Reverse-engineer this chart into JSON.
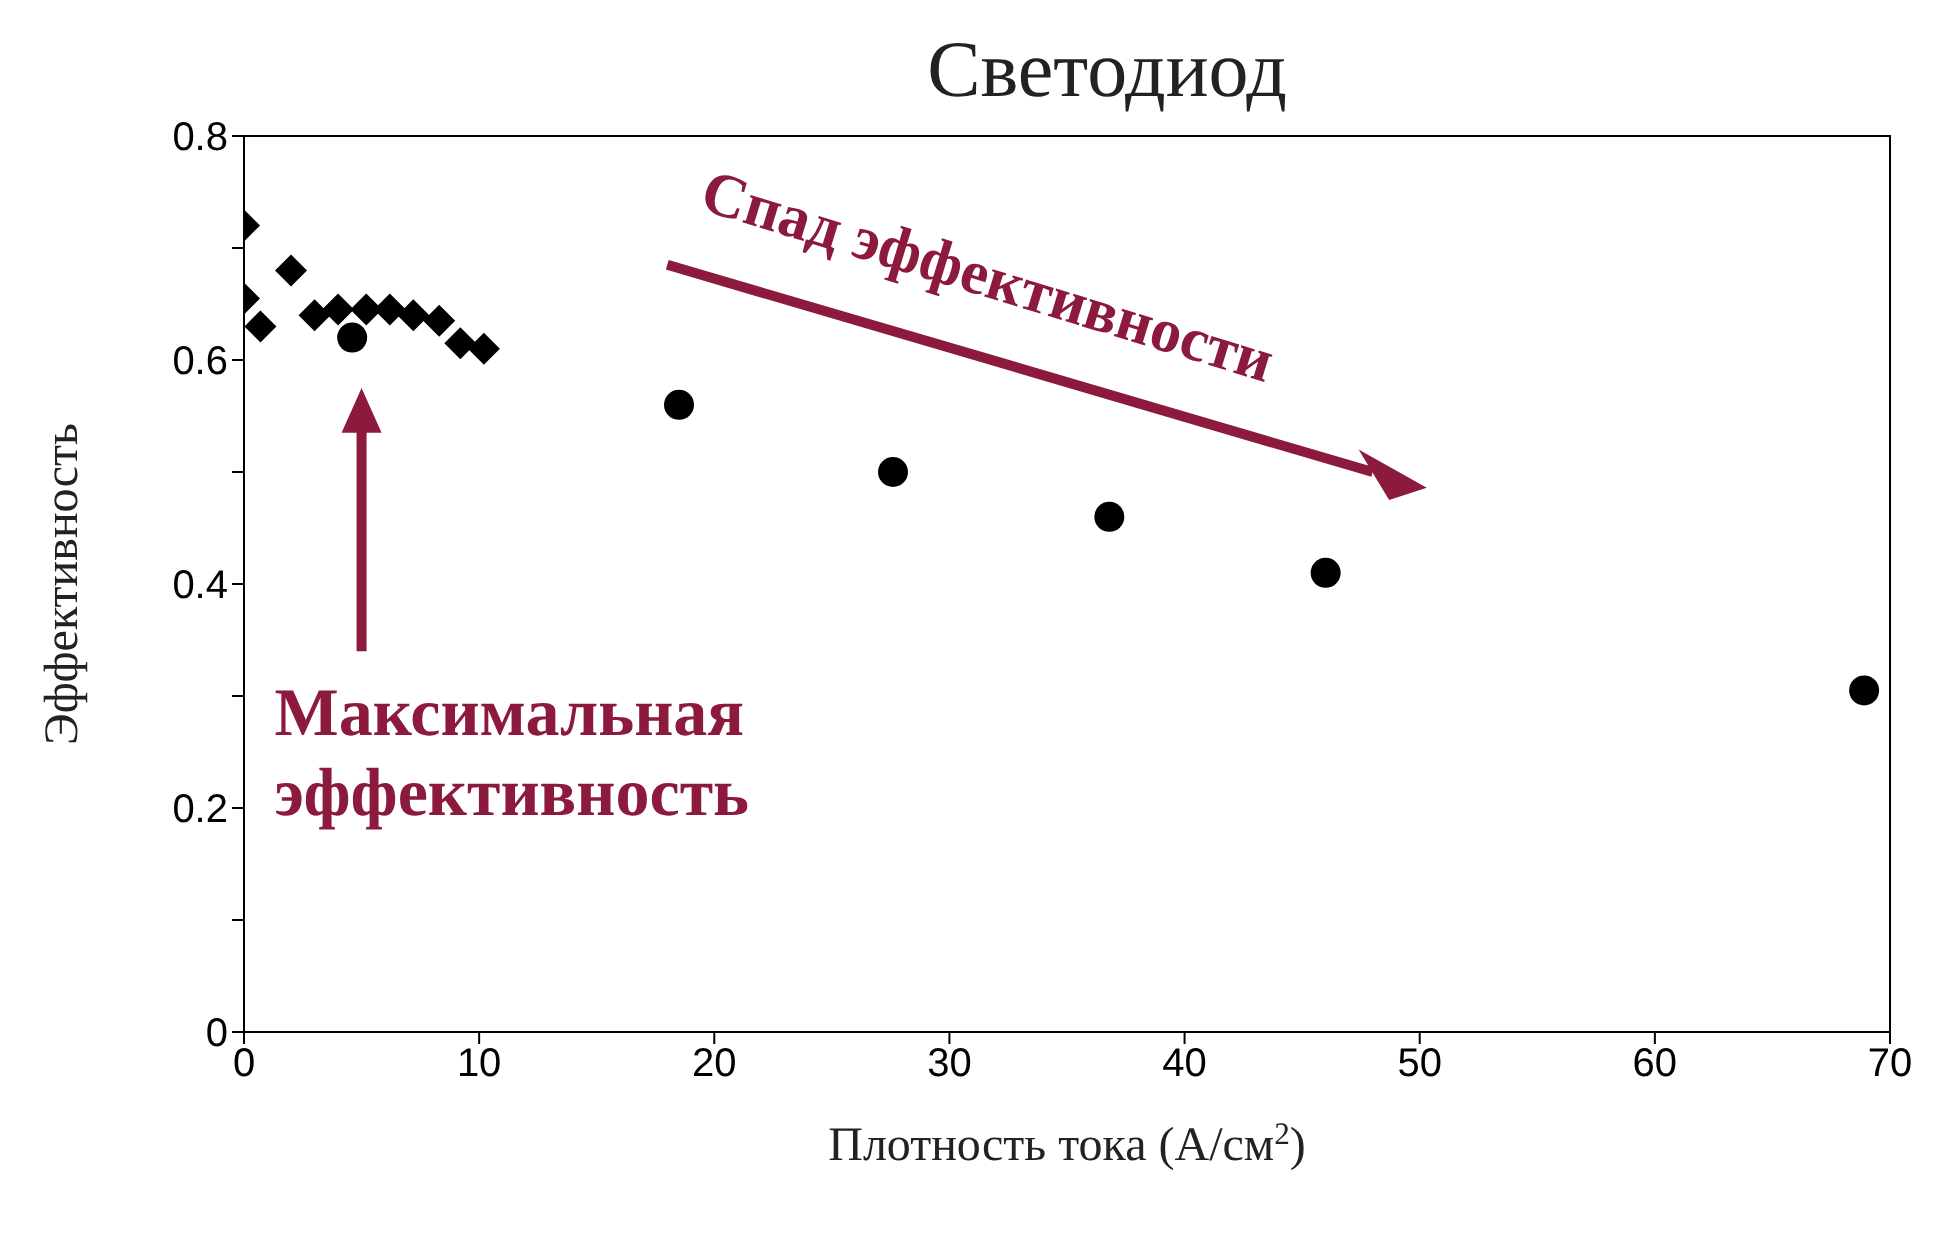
{
  "chart_data": {
    "type": "scatter",
    "title": "Светодиод",
    "xlabel": "Плотность тока (А/см$^{2}$)",
    "ylabel": "Эффективность",
    "xlim": [
      0,
      70
    ],
    "xticks": [
      0,
      10,
      20,
      30,
      40,
      50,
      60,
      70
    ],
    "ylim": [
      0,
      0.8
    ],
    "yticks": [
      0,
      {
        "value": 0.1,
        "label": null
      },
      0.2,
      {
        "value": 0.3,
        "label": null
      },
      0.4,
      {
        "value": 0.5,
        "label": null
      },
      0.6,
      {
        "value": 0.7,
        "label": null
      },
      0.8
    ],
    "grid": false,
    "legend": false,
    "annotations": [
      "Максимальная эффективность",
      "Спад эффективности"
    ],
    "series": [
      {
        "color": "#000000",
        "marker": "diamond",
        "x": [
          0,
          0,
          0.7,
          2,
          3,
          4,
          5.2,
          6.2,
          7.2,
          8.3,
          9.2,
          10.2
        ],
        "values": [
          0.72,
          0.655,
          0.63,
          0.68,
          0.64,
          0.645,
          0.645,
          0.645,
          0.64,
          0.635,
          0.615,
          0.61
        ]
      },
      {
        "color": "#000000",
        "marker": "circle",
        "x": [
          4.6,
          18.5,
          27.6,
          36.8,
          46,
          68.9
        ],
        "values": [
          0.62,
          0.56,
          0.5,
          0.46,
          0.41,
          0.305
        ]
      }
    ]
  }
}
